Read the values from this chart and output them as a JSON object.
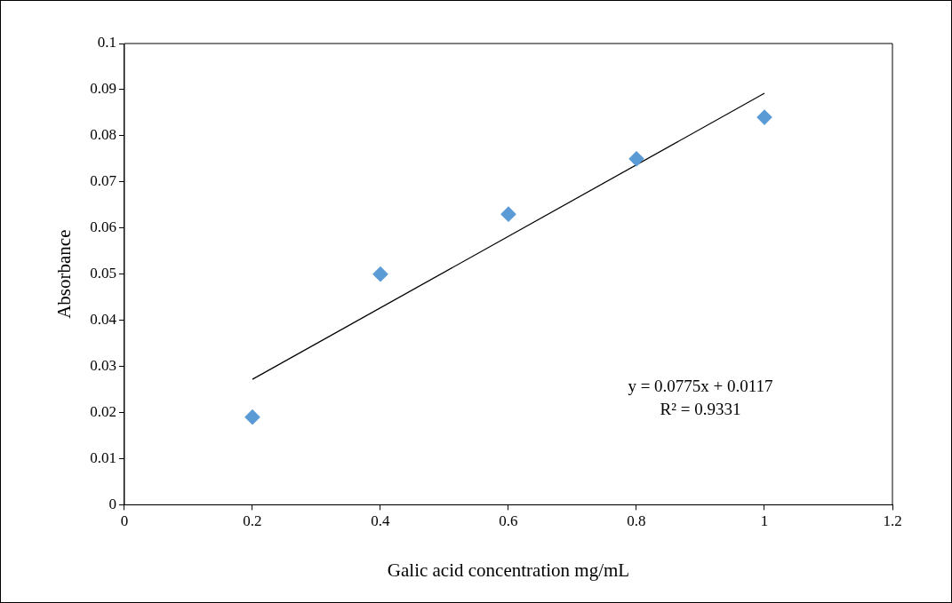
{
  "chart_data": {
    "type": "scatter",
    "xlabel": "Galic acid concentration mg/mL",
    "ylabel": "Absorbance",
    "x": [
      0.2,
      0.4,
      0.6,
      0.8,
      1.0
    ],
    "series": [
      {
        "color": "#5b9bd5",
        "values": [
          0.019,
          0.05,
          0.063,
          0.075,
          0.084
        ],
        "marker": "diamond"
      },
      {
        "type": "line",
        "color": "#000000",
        "x": [
          0.2,
          1.0
        ],
        "values": [
          0.0272,
          0.0892
        ],
        "marker": "none"
      }
    ],
    "annotations": [
      "y = 0.0775x + 0.0117",
      "R² = 0.9331"
    ],
    "xlim": [
      0,
      1.2
    ],
    "xticks": [
      0,
      0.2,
      0.4,
      0.6,
      0.8,
      1,
      1.2
    ],
    "ylim": [
      0,
      0.1
    ],
    "yticks": [
      0,
      0.01,
      0.02,
      0.03,
      0.04,
      0.05,
      0.06,
      0.07,
      0.08,
      0.09,
      0.1
    ],
    "grid": false,
    "legend": false
  }
}
